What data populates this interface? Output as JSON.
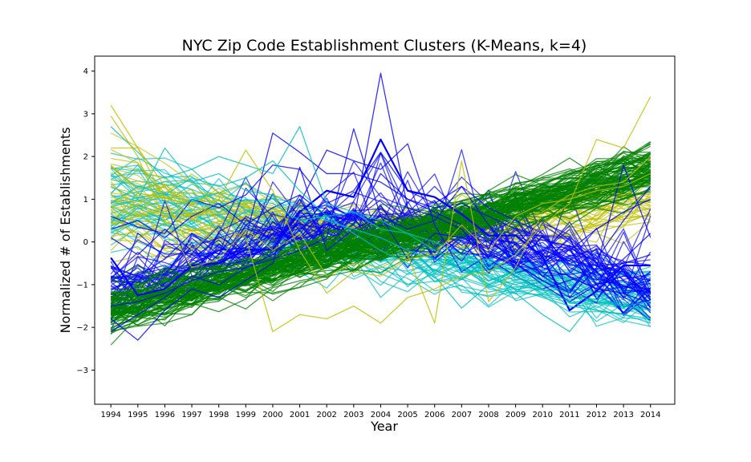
{
  "chart_data": {
    "type": "line",
    "title": "NYC Zip Code Establishment Clusters (K-Means, k=4)",
    "xlabel": "Year",
    "ylabel": "Normalized # of Establishments",
    "x": [
      1994,
      1995,
      1996,
      1997,
      1998,
      1999,
      2000,
      2001,
      2002,
      2003,
      2004,
      2005,
      2006,
      2007,
      2008,
      2009,
      2010,
      2011,
      2012,
      2013,
      2014
    ],
    "xlim": [
      1993.4,
      2014.9
    ],
    "ylim": [
      -3.8,
      4.35
    ],
    "yticks": [
      -3,
      -2,
      -1,
      0,
      1,
      2,
      3,
      4
    ],
    "ytick_labels": [
      "−3",
      "−2",
      "−1",
      "0",
      "1",
      "2",
      "3",
      "4"
    ],
    "grid": false,
    "legend": "none",
    "clusters": [
      {
        "color": "#008000",
        "line_count": 90
      },
      {
        "color": "#00bfbf",
        "line_count": 45
      },
      {
        "color": "#bfbf00",
        "line_count": 35
      },
      {
        "color": "#0000ff",
        "line_count": 40
      }
    ],
    "series": [
      {
        "color": "#0000ff",
        "values": [
          -0.37,
          -1.25,
          -1.1,
          -0.55,
          -0.5,
          -0.18,
          -0.18,
          0.7,
          1.2,
          1.05,
          2.4,
          1.2,
          1.05,
          0.65,
          0.15,
          0.15,
          -0.35,
          -1.6,
          -1.15,
          -0.55,
          -0.55
        ]
      },
      {
        "color": "#0000ff",
        "values": [
          0.6,
          0.35,
          0.2,
          1.0,
          0.8,
          1.1,
          1.8,
          1.7,
          0.9,
          1.2,
          2.1,
          1.2,
          0.9,
          1.3,
          0.8,
          0.5,
          0.2,
          -0.6,
          -0.9,
          -0.4,
          0.2
        ]
      },
      {
        "color": "#0000ff",
        "values": [
          -2.1,
          -1.7,
          -1.3,
          -0.8,
          -1.0,
          -0.6,
          -0.3,
          0.3,
          0.7,
          0.4,
          1.6,
          1.0,
          0.7,
          0.4,
          -0.2,
          -0.5,
          -0.9,
          -1.3,
          -0.6,
          1.8,
          0.1
        ]
      },
      {
        "color": "#0000ff",
        "values": [
          0.3,
          0.5,
          0.1,
          0.6,
          0.9,
          0.4,
          0.8,
          1.1,
          0.6,
          0.5,
          3.95,
          0.8,
          0.6,
          0.3,
          -0.4,
          -0.8,
          -1.1,
          -0.9,
          -0.7,
          -0.5,
          -0.3
        ]
      },
      {
        "color": "#0000ff",
        "values": [
          -1.8,
          -2.3,
          -1.6,
          -1.1,
          -1.3,
          -0.9,
          -0.5,
          1.75,
          -0.2,
          0.3,
          0.6,
          -0.4,
          0.2,
          0.1,
          0.0,
          -0.4,
          -0.8,
          -1.2,
          -0.4,
          0.5,
          1.3
        ]
      },
      {
        "color": "#0000ff",
        "values": [
          0.1,
          -0.3,
          0.3,
          -0.2,
          0.4,
          0.1,
          2.55,
          2.1,
          1.6,
          1.6,
          1.4,
          1.0,
          0.8,
          0.9,
          0.6,
          0.3,
          0.1,
          -0.2,
          0.3,
          0.7,
          1.0
        ]
      },
      {
        "color": "#0000ff",
        "values": [
          -1.5,
          -1.4,
          -1.2,
          -0.9,
          -0.7,
          -0.6,
          -0.4,
          -0.2,
          0.1,
          2.65,
          0.6,
          0.3,
          0.5,
          1.3,
          0.4,
          -0.3,
          -0.6,
          -0.8,
          -1.1,
          -1.2,
          -1.1
        ]
      },
      {
        "color": "#0000ff",
        "values": [
          -0.6,
          -0.8,
          -0.4,
          0.2,
          -0.3,
          0.6,
          0.3,
          0.9,
          2.15,
          1.9,
          1.7,
          2.3,
          0.4,
          -0.7,
          -0.3,
          -0.5,
          -1.0,
          -1.4,
          -1.0,
          -0.8,
          -0.9
        ]
      },
      {
        "color": "#00bfbf",
        "values": [
          2.7,
          2.1,
          1.5,
          1.7,
          2.0,
          1.8,
          1.6,
          2.7,
          0.9,
          0.7,
          0.5,
          0.2,
          0.0,
          -0.3,
          -0.5,
          -0.8,
          -1.1,
          -1.4,
          -1.6,
          -1.7,
          -1.9
        ]
      },
      {
        "color": "#00bfbf",
        "values": [
          1.3,
          1.0,
          2.2,
          1.4,
          1.6,
          1.2,
          1.1,
          0.8,
          0.5,
          0.3,
          0.1,
          -0.2,
          -0.4,
          -0.6,
          -0.8,
          -1.1,
          -1.3,
          -1.5,
          -1.6,
          -1.7,
          -1.8
        ]
      },
      {
        "color": "#00bfbf",
        "values": [
          0.9,
          1.3,
          1.1,
          1.5,
          1.3,
          1.5,
          1.9,
          1.2,
          0.6,
          0.7,
          0.3,
          0.2,
          -0.2,
          -0.5,
          -0.4,
          -0.7,
          -1.0,
          -1.2,
          -1.4,
          -1.5,
          -1.6
        ]
      },
      {
        "color": "#00bfbf",
        "values": [
          0.3,
          0.8,
          0.5,
          1.0,
          0.7,
          1.0,
          0.9,
          0.5,
          0.6,
          0.2,
          -0.2,
          -0.5,
          -0.8,
          -1.55,
          -1.0,
          -1.2,
          -1.7,
          -2.1,
          -1.3,
          -1.5,
          -1.4
        ]
      },
      {
        "color": "#bfbf00",
        "values": [
          3.2,
          2.2,
          1.0,
          -0.2,
          0.4,
          0.1,
          -2.1,
          -1.7,
          -1.8,
          -1.5,
          -1.9,
          -1.3,
          -1.1,
          -0.8,
          -0.7,
          -0.3,
          0.4,
          0.9,
          2.4,
          2.2,
          3.4
        ]
      },
      {
        "color": "#bfbf00",
        "values": [
          2.95,
          2.0,
          0.5,
          -0.6,
          -0.4,
          0.3,
          -0.2,
          0.2,
          -0.8,
          -0.5,
          -0.6,
          -0.3,
          -1.9,
          1.9,
          -1.4,
          -0.6,
          0.7,
          1.1,
          1.3,
          1.4,
          2.0
        ]
      },
      {
        "color": "#bfbf00",
        "values": [
          2.2,
          2.2,
          1.3,
          0.5,
          1.0,
          2.15,
          1.2,
          -0.2,
          -1.2,
          -0.7,
          -0.8,
          -0.4,
          -0.3,
          0.4,
          -0.2,
          0.6,
          0.9,
          1.0,
          1.2,
          1.3,
          1.6
        ]
      }
    ]
  }
}
